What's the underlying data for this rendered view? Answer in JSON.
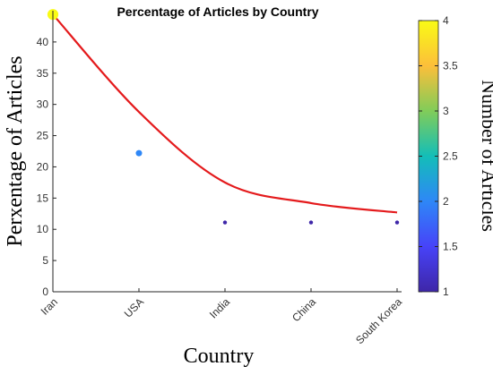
{
  "chart_data": {
    "type": "scatter",
    "title": "Percentage of Articles by Country",
    "xlabel": "Country",
    "ylabel": "Perxentage of Articles",
    "categories": [
      "Iran",
      "USA",
      "India",
      "China",
      "South Korea"
    ],
    "series": [
      {
        "values": [
          44.4,
          22.2,
          11.1,
          11.1,
          11.1
        ],
        "counts": [
          4,
          2,
          1,
          1,
          1
        ]
      }
    ],
    "trend": {
      "values": [
        44.4,
        28.8,
        17.5,
        14.2,
        12.7
      ],
      "color": "#e41a1c"
    },
    "ylim": [
      0,
      45
    ],
    "yticks": [
      0,
      5,
      10,
      15,
      20,
      25,
      30,
      35,
      40
    ],
    "colorbar": {
      "label": "Number of Articles",
      "range": [
        1,
        4
      ],
      "ticks": [
        "1",
        "1.5",
        "2",
        "2.5",
        "3",
        "3.5",
        "4"
      ],
      "colormap": [
        "#3e26a8",
        "#4743f8",
        "#2e87f7",
        "#13beb8",
        "#81cc59",
        "#fcbf3a",
        "#f9fb15"
      ]
    }
  }
}
